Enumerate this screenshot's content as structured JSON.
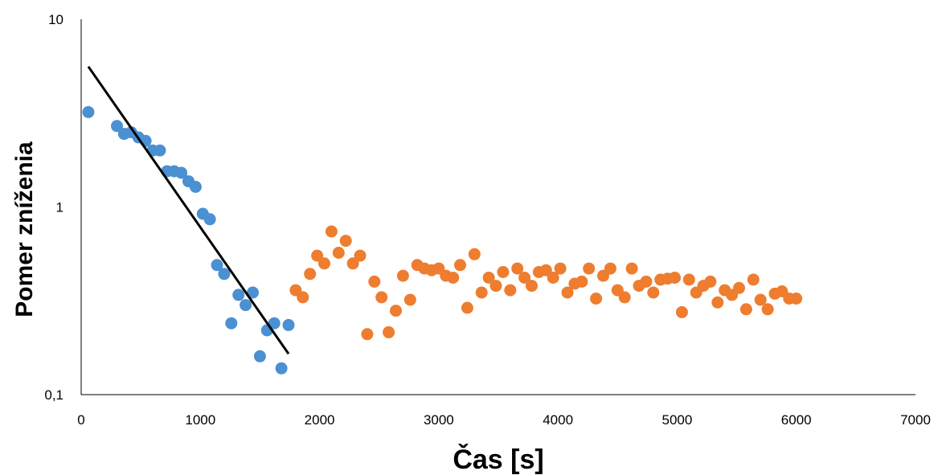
{
  "chart_data": {
    "type": "scatter",
    "title": "",
    "xlabel": "Čas [s]",
    "ylabel": "Pomer zníženia",
    "xlim": [
      0,
      7000
    ],
    "ylim": [
      0.1,
      10
    ],
    "y_scale": "log",
    "grid": false,
    "legend": "none",
    "x_ticks": [
      0,
      1000,
      2000,
      3000,
      4000,
      5000,
      6000,
      7000
    ],
    "x_tick_labels": [
      "0",
      "1000",
      "2000",
      "3000",
      "4000",
      "5000",
      "6000",
      "7000"
    ],
    "y_ticks": [
      0.1,
      1,
      10
    ],
    "y_tick_labels": [
      "0,1",
      "1",
      "10"
    ],
    "series": [
      {
        "color": "#4a90d2",
        "points": [
          [
            60,
            3.2
          ],
          [
            300,
            2.7
          ],
          [
            360,
            2.45
          ],
          [
            420,
            2.5
          ],
          [
            480,
            2.35
          ],
          [
            540,
            2.25
          ],
          [
            600,
            2.0
          ],
          [
            660,
            2.0
          ],
          [
            720,
            1.55
          ],
          [
            780,
            1.55
          ],
          [
            840,
            1.52
          ],
          [
            900,
            1.37
          ],
          [
            960,
            1.28
          ],
          [
            1020,
            0.92
          ],
          [
            1080,
            0.86
          ],
          [
            1140,
            0.49
          ],
          [
            1200,
            0.44
          ],
          [
            1260,
            0.24
          ],
          [
            1320,
            0.34
          ],
          [
            1380,
            0.3
          ],
          [
            1440,
            0.35
          ],
          [
            1500,
            0.16
          ],
          [
            1560,
            0.22
          ],
          [
            1620,
            0.24
          ],
          [
            1680,
            0.138
          ],
          [
            1740,
            0.235
          ]
        ]
      },
      {
        "color": "#ee7d2f",
        "points": [
          [
            1800,
            0.36
          ],
          [
            1860,
            0.33
          ],
          [
            1920,
            0.44
          ],
          [
            1980,
            0.55
          ],
          [
            2040,
            0.5
          ],
          [
            2100,
            0.74
          ],
          [
            2160,
            0.57
          ],
          [
            2220,
            0.66
          ],
          [
            2280,
            0.5
          ],
          [
            2340,
            0.55
          ],
          [
            2400,
            0.21
          ],
          [
            2460,
            0.4
          ],
          [
            2520,
            0.33
          ],
          [
            2580,
            0.215
          ],
          [
            2640,
            0.28
          ],
          [
            2700,
            0.43
          ],
          [
            2760,
            0.32
          ],
          [
            2820,
            0.49
          ],
          [
            2880,
            0.47
          ],
          [
            2940,
            0.46
          ],
          [
            3000,
            0.47
          ],
          [
            3060,
            0.43
          ],
          [
            3120,
            0.42
          ],
          [
            3180,
            0.49
          ],
          [
            3240,
            0.29
          ],
          [
            3300,
            0.56
          ],
          [
            3360,
            0.35
          ],
          [
            3420,
            0.42
          ],
          [
            3480,
            0.38
          ],
          [
            3540,
            0.45
          ],
          [
            3600,
            0.36
          ],
          [
            3660,
            0.47
          ],
          [
            3720,
            0.42
          ],
          [
            3780,
            0.38
          ],
          [
            3840,
            0.45
          ],
          [
            3900,
            0.46
          ],
          [
            3960,
            0.42
          ],
          [
            4020,
            0.47
          ],
          [
            4080,
            0.35
          ],
          [
            4140,
            0.39
          ],
          [
            4200,
            0.4
          ],
          [
            4260,
            0.47
          ],
          [
            4320,
            0.325
          ],
          [
            4380,
            0.43
          ],
          [
            4440,
            0.47
          ],
          [
            4500,
            0.36
          ],
          [
            4560,
            0.33
          ],
          [
            4620,
            0.47
          ],
          [
            4680,
            0.38
          ],
          [
            4740,
            0.4
          ],
          [
            4800,
            0.35
          ],
          [
            4860,
            0.41
          ],
          [
            4920,
            0.415
          ],
          [
            4980,
            0.42
          ],
          [
            5040,
            0.275
          ],
          [
            5100,
            0.41
          ],
          [
            5160,
            0.35
          ],
          [
            5220,
            0.38
          ],
          [
            5280,
            0.4
          ],
          [
            5340,
            0.31
          ],
          [
            5400,
            0.36
          ],
          [
            5460,
            0.34
          ],
          [
            5520,
            0.37
          ],
          [
            5580,
            0.285
          ],
          [
            5640,
            0.41
          ],
          [
            5700,
            0.32
          ],
          [
            5760,
            0.285
          ],
          [
            5820,
            0.345
          ],
          [
            5880,
            0.355
          ],
          [
            5940,
            0.325
          ],
          [
            6000,
            0.325
          ]
        ]
      }
    ],
    "trendline": {
      "color": "#000000",
      "points": [
        [
          60,
          5.6
        ],
        [
          1740,
          0.165
        ]
      ]
    }
  }
}
